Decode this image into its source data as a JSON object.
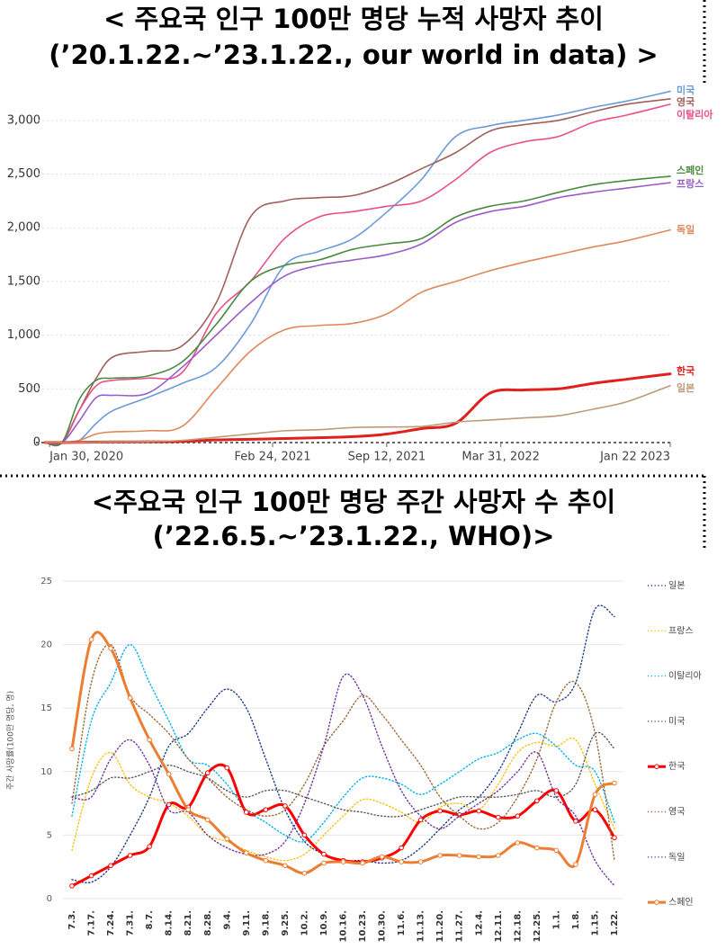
{
  "chart_data": [
    {
      "type": "line",
      "title": "< 주요국 인구 100만 명당 누적 사망자 추이",
      "subtitle": "(’20.1.22.~’23.1.22., our world in data) >",
      "x": [
        0,
        30,
        60,
        90,
        120,
        180,
        240,
        300,
        360,
        420,
        480,
        540,
        600,
        660,
        720,
        780,
        840,
        900,
        960,
        1020,
        1096
      ],
      "xlim": [
        0,
        1096
      ],
      "xticks": [
        {
          "value": 8,
          "label": "Jan 30, 2020"
        },
        {
          "value": 399,
          "label": "Feb 24, 2021"
        },
        {
          "value": 599,
          "label": "Sep 12, 2021"
        },
        {
          "value": 799,
          "label": "Mar 31, 2022"
        },
        {
          "value": 1096,
          "label": "Jan  22  2023"
        }
      ],
      "ylim": [
        0,
        3300
      ],
      "yticks": [
        0,
        {
          "value": 500,
          "label": "500"
        },
        {
          "value": 1000,
          "label": "1,000"
        },
        {
          "value": 1500,
          "label": "1,500"
        },
        {
          "value": 2000,
          "label": "2,000"
        },
        {
          "value": 2500,
          "label": "2,500"
        },
        {
          "value": 3000,
          "label": "3,000"
        }
      ],
      "grid": true,
      "series": [
        {
          "name": "미국",
          "color": "#6a9ad8",
          "values": [
            0,
            0,
            20,
            180,
            300,
            420,
            550,
            700,
            1100,
            1650,
            1780,
            1900,
            2150,
            2450,
            2850,
            2950,
            3000,
            3050,
            3120,
            3180,
            3270
          ]
        },
        {
          "name": "영국",
          "color": "#a0605a",
          "values": [
            0,
            2,
            300,
            600,
            800,
            850,
            900,
            1300,
            2100,
            2250,
            2280,
            2300,
            2400,
            2550,
            2700,
            2900,
            2960,
            3000,
            3080,
            3150,
            3200
          ]
        },
        {
          "name": "이탈리아",
          "color": "#e8508a",
          "values": [
            0,
            5,
            300,
            530,
            580,
            600,
            650,
            1200,
            1500,
            1900,
            2100,
            2150,
            2200,
            2250,
            2450,
            2700,
            2800,
            2850,
            2980,
            3050,
            3150
          ]
        },
        {
          "name": "스페인",
          "color": "#4a8a40",
          "values": [
            0,
            1,
            400,
            580,
            600,
            620,
            750,
            1100,
            1500,
            1650,
            1700,
            1800,
            1850,
            1900,
            2100,
            2200,
            2250,
            2330,
            2400,
            2440,
            2480
          ]
        },
        {
          "name": "프랑스",
          "color": "#9a5cc8",
          "values": [
            0,
            1,
            200,
            420,
            440,
            460,
            700,
            1000,
            1300,
            1550,
            1650,
            1700,
            1750,
            1850,
            2050,
            2150,
            2200,
            2280,
            2330,
            2370,
            2420
          ]
        },
        {
          "name": "독일",
          "color": "#e0885a",
          "values": [
            0,
            0,
            20,
            80,
            100,
            110,
            150,
            500,
            850,
            1050,
            1090,
            1110,
            1200,
            1400,
            1500,
            1600,
            1680,
            1750,
            1820,
            1880,
            1980
          ]
        },
        {
          "name": "한국",
          "color": "#e0201c",
          "highlight": true,
          "values": [
            0,
            0,
            2,
            5,
            6,
            7,
            10,
            25,
            30,
            38,
            45,
            55,
            80,
            130,
            180,
            460,
            490,
            500,
            550,
            590,
            640
          ]
        },
        {
          "name": "일본",
          "color": "#c09a78",
          "values": [
            0,
            0,
            1,
            5,
            7,
            10,
            20,
            50,
            80,
            110,
            120,
            140,
            145,
            150,
            190,
            210,
            230,
            250,
            310,
            380,
            530
          ]
        }
      ]
    },
    {
      "type": "line",
      "title": "<주요국 인구 100만 명당 주간 사망자 수 추이",
      "subtitle": "(’22.6.5.~’23.1.22., WHO)>",
      "y_label": "주간 사망률(100만 명당, 명)",
      "categories": [
        "7.3.",
        "7.17.",
        "7.24.",
        "7.31.",
        "8.7.",
        "8.14.",
        "8.21.",
        "8.28.",
        "9.4.",
        "9.11.",
        "9.18.",
        "9.25.",
        "10.2.",
        "10.9.",
        "10.16.",
        "10.23.",
        "10.30.",
        "11.6.",
        "11.13.",
        "11.20.",
        "11.27.",
        "12.4.",
        "12.11.",
        "12.18.",
        "12.25.",
        "1.1.",
        "1.8.",
        "1.15.",
        "1.22."
      ],
      "ylim": [
        0,
        25
      ],
      "yticks": [
        0,
        5,
        10,
        15,
        20,
        25
      ],
      "grid": true,
      "series": [
        {
          "name": "일본",
          "color": "#1f3c88",
          "line_style": "dotted",
          "values": [
            1.5,
            1.3,
            2.5,
            5,
            8,
            12,
            13,
            15,
            16.5,
            15,
            11,
            7,
            4.5,
            3.5,
            3,
            3,
            2.8,
            3,
            4,
            5.5,
            7,
            8,
            10,
            13,
            16,
            15.5,
            17,
            22.8,
            22.2
          ]
        },
        {
          "name": "프랑스",
          "color": "#ffc000",
          "line_style": "dotted",
          "values": [
            3.8,
            9.5,
            11.5,
            9,
            8,
            7.5,
            6.5,
            5,
            4.5,
            3.8,
            3.3,
            3,
            3.5,
            5,
            6.5,
            7.8,
            7.5,
            6.8,
            6,
            7.2,
            7.5,
            7,
            9,
            11.5,
            12.3,
            12,
            12.5,
            9,
            5.5
          ]
        },
        {
          "name": "이탈리아",
          "color": "#00b0f0",
          "line_style": "dotted",
          "values": [
            6.5,
            14,
            17,
            20,
            17,
            14,
            11,
            10.5,
            9,
            7,
            6,
            5,
            4.5,
            6,
            8,
            9.5,
            9.5,
            9,
            8.2,
            9,
            10,
            11,
            11.5,
            12.5,
            13,
            12,
            10.5,
            10,
            6
          ]
        },
        {
          "name": "미국",
          "color": "#595959",
          "line_style": "dotted",
          "values": [
            8,
            8.5,
            9.5,
            9.5,
            10,
            10.5,
            10,
            9.5,
            8.5,
            8,
            8.5,
            8.5,
            8,
            7.5,
            7,
            6.8,
            6.5,
            6.5,
            7,
            7.5,
            8,
            8,
            8,
            8.2,
            8.5,
            8,
            9,
            13,
            11.8
          ]
        },
        {
          "name": "한국",
          "color": "#ff0000",
          "line_style": "solid",
          "markers": true,
          "highlight": true,
          "values": [
            1,
            1.8,
            2.6,
            3.4,
            4.1,
            7.4,
            7.2,
            9.9,
            10.3,
            6.8,
            7,
            7.3,
            5,
            3.5,
            3,
            2.9,
            3.2,
            4,
            6.2,
            6.9,
            6.6,
            6.9,
            6.4,
            6.5,
            7.7,
            8.5,
            6.1,
            7,
            4.8
          ]
        },
        {
          "name": "영국",
          "color": "#996633",
          "line_style": "dotted",
          "values": [
            7.5,
            17,
            20,
            16,
            14.5,
            13,
            11,
            9.5,
            8,
            7,
            6.5,
            7,
            9,
            12,
            14,
            16,
            14.5,
            12.5,
            10.5,
            8,
            6.5,
            5.5,
            6,
            8,
            11,
            15.5,
            17,
            13,
            3
          ]
        },
        {
          "name": "독일",
          "color": "#7030a0",
          "line_style": "dotted",
          "values": [
            8,
            8,
            11,
            12.5,
            10.5,
            7,
            6.8,
            5,
            4,
            3.5,
            3.5,
            4.5,
            7.5,
            12,
            17.5,
            16,
            12,
            8.5,
            6.5,
            5.5,
            6.5,
            7.5,
            8.5,
            10,
            11.5,
            8,
            6.5,
            3,
            1
          ]
        },
        {
          "name": "스페인",
          "color": "#ed7d31",
          "line_style": "solid",
          "markers": true,
          "highlight": true,
          "values": [
            11.8,
            20.4,
            19.7,
            15.8,
            12.5,
            9.8,
            7,
            6.2,
            4.7,
            3.6,
            3,
            2.6,
            2,
            2.8,
            2.9,
            2.8,
            3.3,
            2.9,
            2.9,
            3.4,
            3.4,
            3.3,
            3.4,
            4.4,
            4,
            3.8,
            2.7,
            8.2,
            9.1
          ]
        }
      ]
    }
  ]
}
